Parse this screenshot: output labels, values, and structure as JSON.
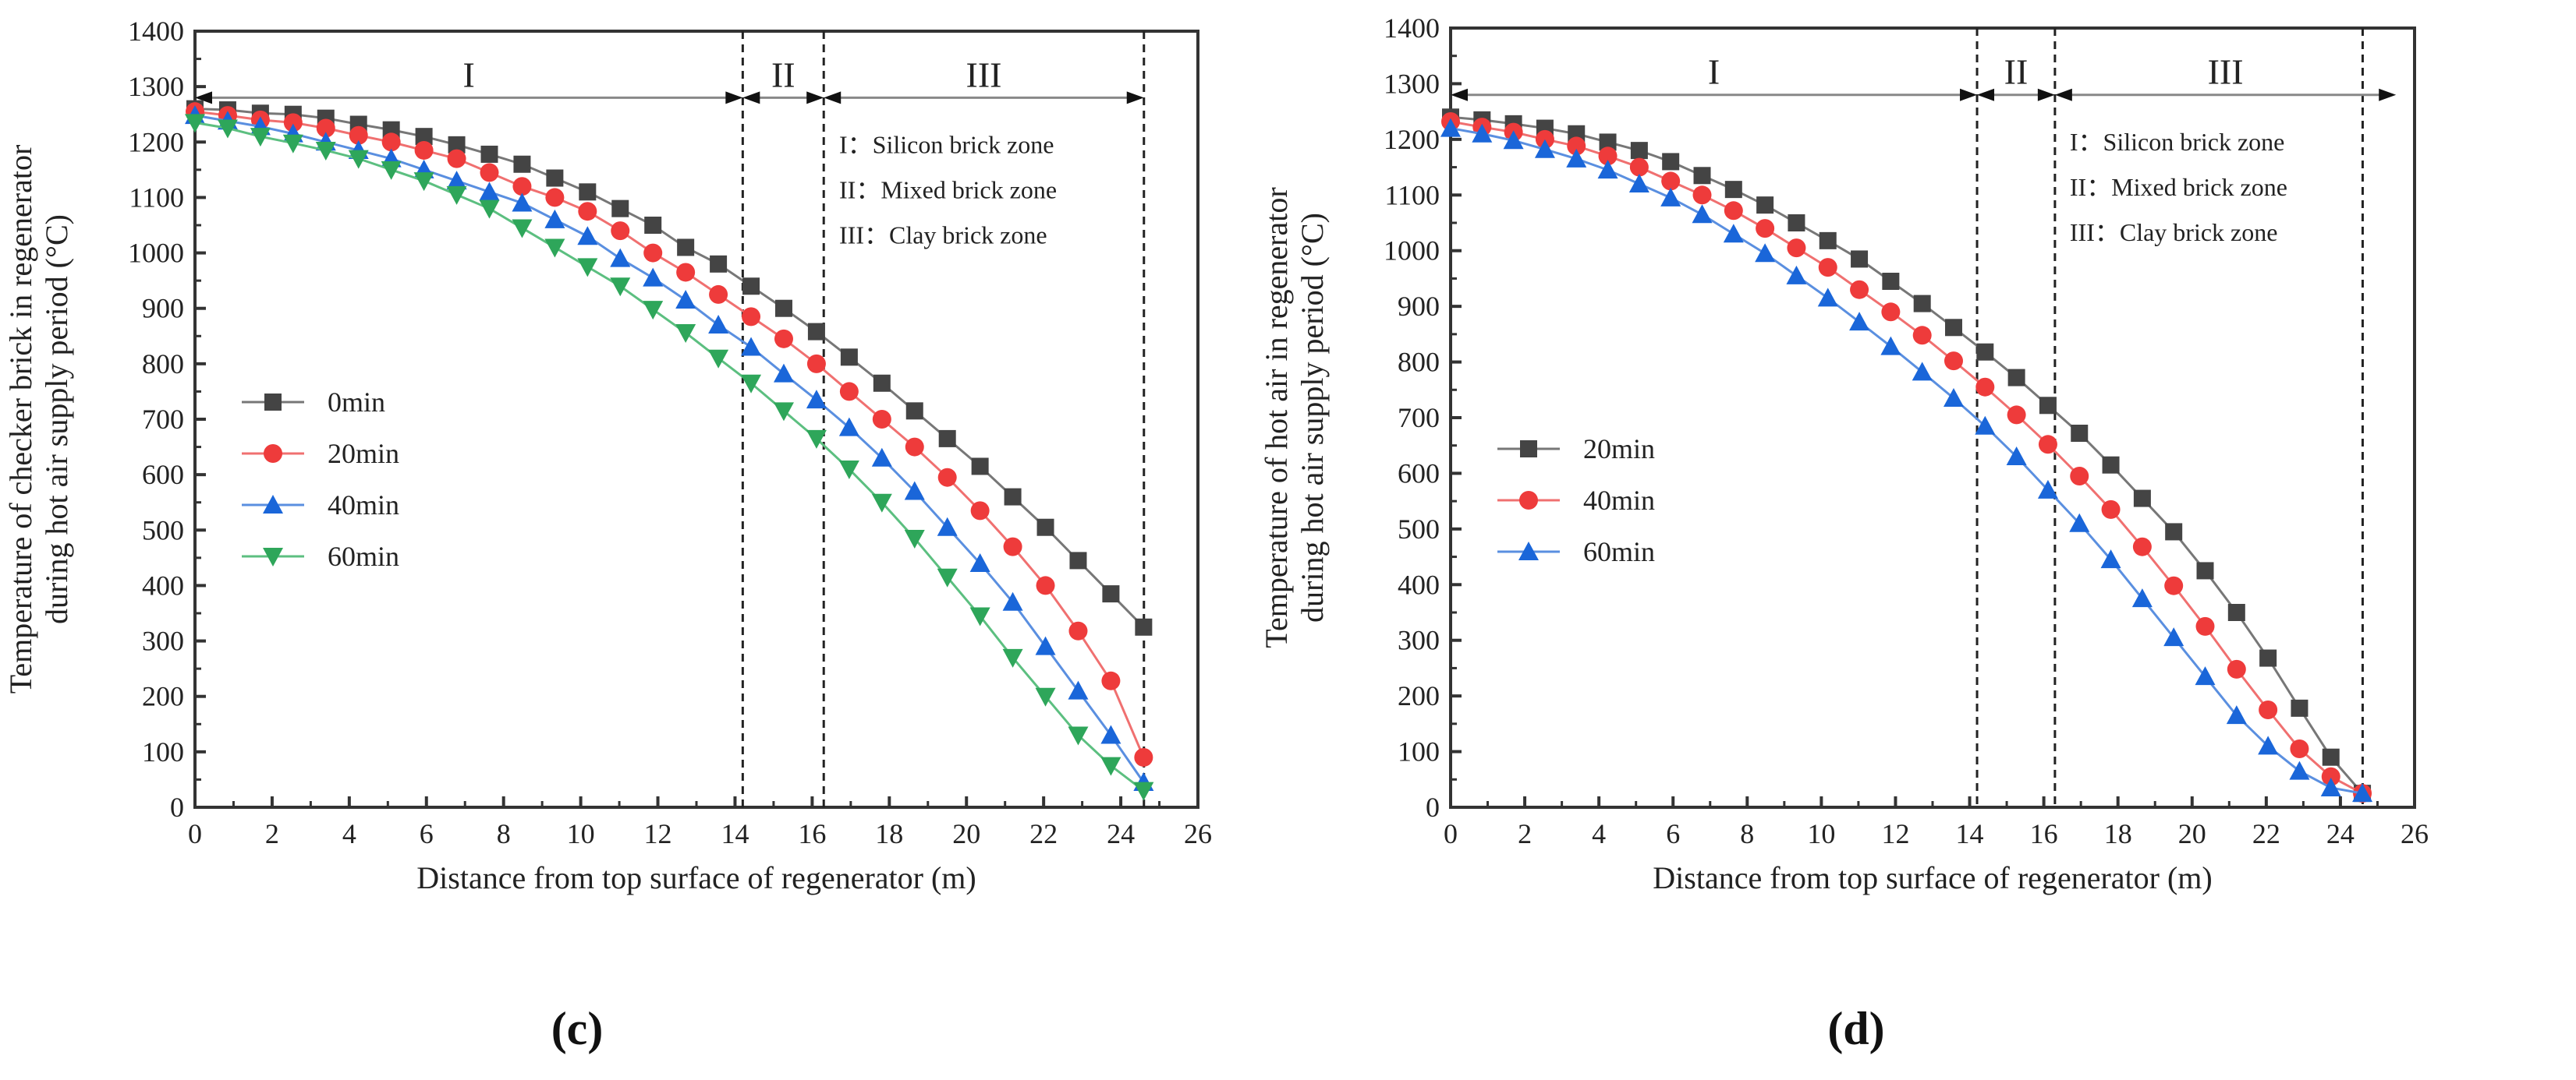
{
  "chart_data": [
    {
      "id": "c",
      "type": "line",
      "panel_label": "(c)",
      "panel_letter": "c",
      "xlabel": "Distance from top surface of regenerator (m)",
      "ylabel": [
        "Temperature of checker brick in regenerator",
        "during hot air supply period (°C)"
      ],
      "xlim": [
        0,
        26
      ],
      "ylim": [
        0,
        1400
      ],
      "xticks": [
        0,
        2,
        4,
        6,
        8,
        10,
        12,
        14,
        16,
        18,
        20,
        22,
        24,
        26
      ],
      "yticks": [
        0,
        100,
        200,
        300,
        400,
        500,
        600,
        700,
        800,
        900,
        1000,
        1100,
        1200,
        1300,
        1400
      ],
      "grid": false,
      "legend_position": "lower-left",
      "zones": {
        "boundaries": [
          14.2,
          16.3,
          24.6
        ],
        "labels": [
          "I",
          "II",
          "III"
        ],
        "arrow_end": 24.6,
        "legend": [
          "I：Silicon brick zone",
          "II：Mixed brick zone",
          "III：Clay brick zone"
        ]
      },
      "x_step": 0.848,
      "series": [
        {
          "name": "0min",
          "marker": "square",
          "color": "#444444",
          "line": "#777777",
          "values": [
            1260,
            1258,
            1252,
            1250,
            1243,
            1232,
            1222,
            1210,
            1195,
            1178,
            1160,
            1135,
            1110,
            1080,
            1050,
            1010,
            980,
            940,
            900,
            858,
            812,
            765,
            715,
            665,
            615,
            560,
            505,
            445,
            385,
            325
          ]
        },
        {
          "name": "20min",
          "marker": "circle",
          "color": "#ee3b3b",
          "line": "#f07070",
          "values": [
            1255,
            1248,
            1240,
            1235,
            1225,
            1212,
            1200,
            1185,
            1170,
            1145,
            1120,
            1100,
            1075,
            1040,
            1000,
            965,
            925,
            885,
            845,
            800,
            750,
            700,
            650,
            595,
            535,
            470,
            400,
            318,
            228,
            90
          ]
        },
        {
          "name": "40min",
          "marker": "triangle-up",
          "color": "#1a66d9",
          "line": "#5a8fe0",
          "values": [
            1248,
            1238,
            1228,
            1215,
            1200,
            1185,
            1170,
            1150,
            1130,
            1110,
            1090,
            1060,
            1030,
            990,
            955,
            915,
            870,
            830,
            782,
            735,
            685,
            630,
            570,
            505,
            440,
            370,
            290,
            210,
            130,
            45
          ]
        },
        {
          "name": "60min",
          "marker": "triangle-down",
          "color": "#2ea65a",
          "line": "#5cbf80",
          "values": [
            1235,
            1225,
            1210,
            1198,
            1185,
            1170,
            1150,
            1130,
            1105,
            1080,
            1045,
            1010,
            975,
            940,
            898,
            856,
            810,
            765,
            715,
            665,
            610,
            550,
            485,
            415,
            345,
            270,
            200,
            130,
            75,
            30
          ]
        }
      ]
    },
    {
      "id": "d",
      "type": "line",
      "panel_label": "(d)",
      "panel_letter": "d",
      "xlabel": "Distance from top surface of regenerator (m)",
      "ylabel": [
        "Temperature of hot air in regenerator",
        "during hot air supply period (°C)"
      ],
      "xlim": [
        0,
        26
      ],
      "ylim": [
        0,
        1400
      ],
      "xticks": [
        0,
        2,
        4,
        6,
        8,
        10,
        12,
        14,
        16,
        18,
        20,
        22,
        24,
        26
      ],
      "yticks": [
        0,
        100,
        200,
        300,
        400,
        500,
        600,
        700,
        800,
        900,
        1000,
        1100,
        1200,
        1300,
        1400
      ],
      "grid": false,
      "legend_position": "lower-left",
      "zones": {
        "boundaries": [
          14.2,
          16.3,
          24.6
        ],
        "labels": [
          "I",
          "II",
          "III"
        ],
        "arrow_end": 25.5,
        "legend": [
          "I：Silicon brick zone",
          "II：Mixed brick zone",
          "III：Clay brick zone"
        ]
      },
      "x_step": 0.848,
      "series": [
        {
          "name": "20min",
          "marker": "square",
          "color": "#444444",
          "line": "#777777",
          "values": [
            1240,
            1235,
            1228,
            1220,
            1210,
            1195,
            1180,
            1160,
            1135,
            1110,
            1082,
            1050,
            1018,
            985,
            945,
            905,
            862,
            818,
            772,
            722,
            672,
            615,
            555,
            495,
            425,
            350,
            268,
            178,
            90,
            25
          ]
        },
        {
          "name": "40min",
          "marker": "circle",
          "color": "#ee3b3b",
          "line": "#f07070",
          "values": [
            1232,
            1222,
            1213,
            1200,
            1188,
            1170,
            1150,
            1125,
            1100,
            1072,
            1040,
            1005,
            970,
            930,
            890,
            848,
            802,
            755,
            705,
            652,
            595,
            535,
            468,
            398,
            325,
            248,
            175,
            105,
            55,
            25
          ]
        },
        {
          "name": "60min",
          "marker": "triangle-up",
          "color": "#1a66d9",
          "line": "#5a8fe0",
          "values": [
            1220,
            1210,
            1198,
            1182,
            1165,
            1145,
            1120,
            1095,
            1065,
            1030,
            995,
            955,
            915,
            872,
            828,
            782,
            735,
            685,
            630,
            570,
            510,
            445,
            375,
            305,
            235,
            165,
            110,
            65,
            35,
            25
          ]
        }
      ]
    }
  ]
}
